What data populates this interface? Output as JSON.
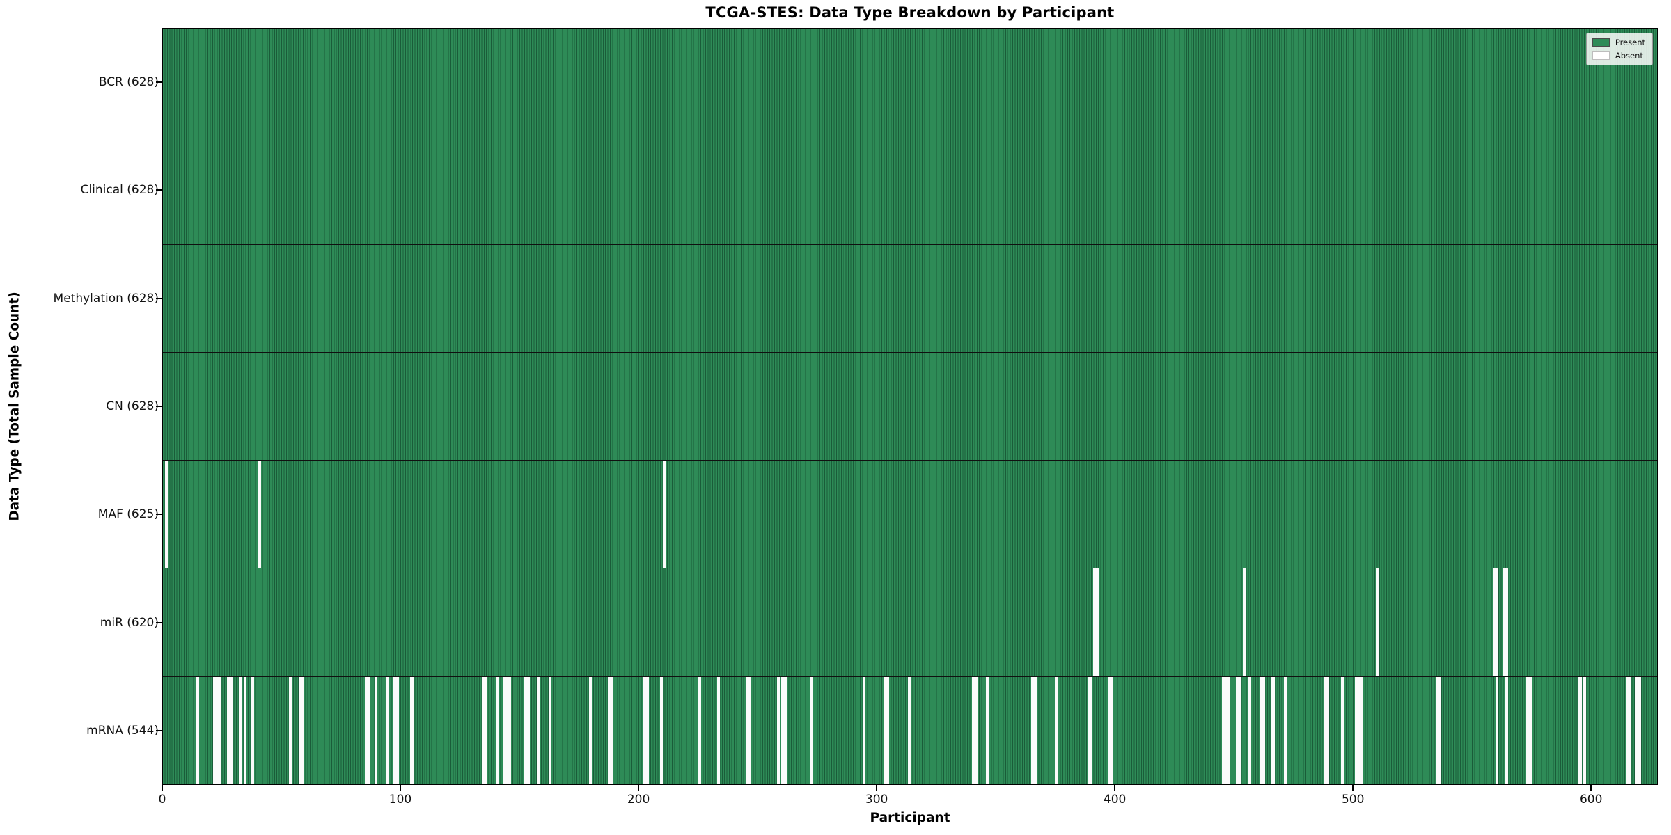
{
  "title": "TCGA-STES: Data Type Breakdown by Participant",
  "axes": {
    "xlabel": "Participant",
    "ylabel": "Data Type (Total Sample Count)"
  },
  "legend": {
    "present_label": "Present",
    "absent_label": "Absent"
  },
  "colors": {
    "present": "#2e8b57",
    "present_edge": "#1a5c39",
    "absent": "#fbfbfb"
  },
  "chart_data": {
    "type": "heatmap",
    "title": "TCGA-STES: Data Type Breakdown by Participant",
    "xlabel": "Participant",
    "ylabel": "Data Type (Total Sample Count)",
    "x_range": [
      0,
      628
    ],
    "x_ticks": [
      0,
      100,
      200,
      300,
      400,
      500,
      600
    ],
    "n_participants": 628,
    "legend_entries": [
      "Present",
      "Absent"
    ],
    "legend_position": "upper right",
    "grid": false,
    "rows": [
      {
        "name": "bcr",
        "label": "BCR (628)",
        "data_type": "BCR",
        "total": 628,
        "absent_participants": []
      },
      {
        "name": "clinical",
        "label": "Clinical (628)",
        "data_type": "Clinical",
        "total": 628,
        "absent_participants": []
      },
      {
        "name": "methylation",
        "label": "Methylation (628)",
        "data_type": "Methylation",
        "total": 628,
        "absent_participants": []
      },
      {
        "name": "cn",
        "label": "CN (628)",
        "data_type": "CN",
        "total": 628,
        "absent_participants": []
      },
      {
        "name": "maf",
        "label": "MAF (625)",
        "data_type": "MAF",
        "total": 625,
        "absent_participants": [
          1,
          40,
          210
        ]
      },
      {
        "name": "mir",
        "label": "miR (620)",
        "data_type": "miR",
        "total": 620,
        "absent_participants": [
          391,
          392,
          454,
          510,
          559,
          560,
          563,
          564
        ]
      },
      {
        "name": "mrna",
        "label": "mRNA (544)",
        "data_type": "mRNA",
        "total": 544,
        "absent_participants": [
          14,
          21,
          22,
          23,
          27,
          28,
          32,
          34,
          37,
          53,
          57,
          58,
          85,
          86,
          89,
          94,
          97,
          98,
          104,
          134,
          135,
          140,
          143,
          144,
          145,
          152,
          153,
          157,
          162,
          179,
          187,
          188,
          202,
          203,
          209,
          225,
          233,
          245,
          246,
          258,
          260,
          261,
          272,
          294,
          303,
          304,
          313,
          340,
          341,
          346,
          365,
          366,
          375,
          389,
          397,
          398,
          445,
          446,
          447,
          451,
          452,
          456,
          461,
          462,
          466,
          471,
          488,
          489,
          495,
          501,
          502,
          503,
          535,
          536,
          560,
          564,
          573,
          574,
          595,
          597,
          615,
          616,
          619,
          620
        ]
      }
    ]
  }
}
